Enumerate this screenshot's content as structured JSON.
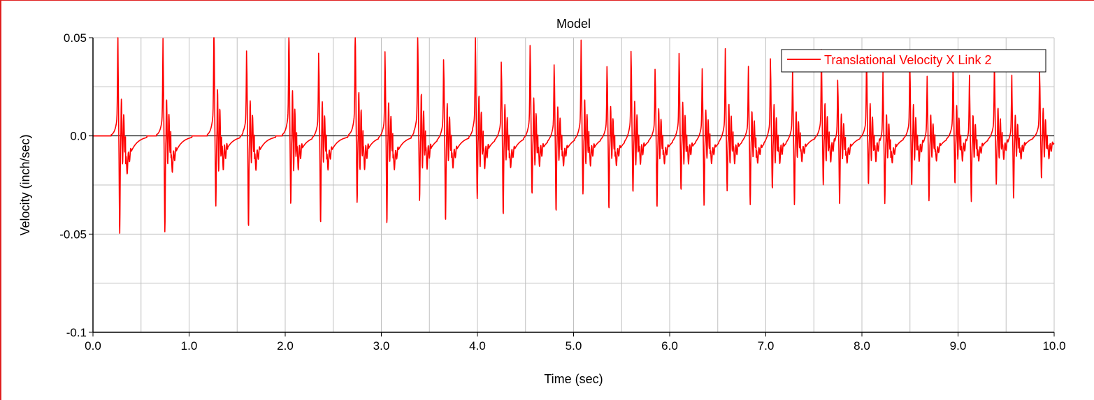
{
  "colors": {
    "series": "#ff0000",
    "grid": "#c0c0c0",
    "axis": "#000000",
    "frame": "#e02020"
  },
  "chart_data": {
    "type": "line",
    "title": "Model",
    "xlabel": "Time (sec)",
    "ylabel": "Velocity (inch/sec)",
    "xlim": [
      0,
      10
    ],
    "ylim": [
      -0.1,
      0.05
    ],
    "grid": true,
    "legend_position": "top-right",
    "x_ticks": [
      0,
      1,
      2,
      3,
      4,
      5,
      6,
      7,
      8,
      9,
      10
    ],
    "x_tick_labels": [
      "0.0",
      "1.0",
      "2.0",
      "3.0",
      "4.0",
      "5.0",
      "6.0",
      "7.0",
      "8.0",
      "9.0",
      "10.0"
    ],
    "y_ticks": [
      -0.1,
      -0.05,
      0,
      0.05
    ],
    "y_tick_labels": [
      "-0.1",
      "-0.05",
      "0.0",
      "0.05"
    ],
    "series": [
      {
        "name": "Translational Velocity X Link 2",
        "color": "#ff0000",
        "pulses": [
          {
            "t": 0.26,
            "pos": 0.039,
            "neg": -0.05,
            "tail": -0.018
          },
          {
            "t": 0.73,
            "pos": 0.039,
            "neg": -0.049,
            "tail": -0.017
          },
          {
            "t": 1.26,
            "pos": 0.049,
            "neg": -0.036,
            "tail": -0.014
          },
          {
            "t": 1.6,
            "pos": 0.037,
            "neg": -0.047,
            "tail": -0.016
          },
          {
            "t": 2.04,
            "pos": 0.048,
            "neg": -0.035,
            "tail": -0.014
          },
          {
            "t": 2.35,
            "pos": 0.036,
            "neg": -0.045,
            "tail": -0.016
          },
          {
            "t": 2.73,
            "pos": 0.047,
            "neg": -0.034,
            "tail": -0.014
          },
          {
            "t": 3.04,
            "pos": 0.035,
            "neg": -0.045,
            "tail": -0.016
          },
          {
            "t": 3.38,
            "pos": 0.045,
            "neg": -0.033,
            "tail": -0.014
          },
          {
            "t": 3.65,
            "pos": 0.034,
            "neg": -0.043,
            "tail": -0.015
          },
          {
            "t": 3.98,
            "pos": 0.043,
            "neg": -0.032,
            "tail": -0.014
          },
          {
            "t": 4.25,
            "pos": 0.033,
            "neg": -0.04,
            "tail": -0.015
          },
          {
            "t": 4.55,
            "pos": 0.04,
            "neg": -0.03,
            "tail": -0.013
          },
          {
            "t": 4.8,
            "pos": 0.032,
            "neg": -0.038,
            "tail": -0.014
          },
          {
            "t": 5.08,
            "pos": 0.039,
            "neg": -0.029,
            "tail": -0.013
          },
          {
            "t": 5.35,
            "pos": 0.031,
            "neg": -0.037,
            "tail": -0.014
          },
          {
            "t": 5.6,
            "pos": 0.038,
            "neg": -0.028,
            "tail": -0.012
          },
          {
            "t": 5.85,
            "pos": 0.03,
            "neg": -0.036,
            "tail": -0.013
          },
          {
            "t": 6.1,
            "pos": 0.037,
            "neg": -0.027,
            "tail": -0.012
          },
          {
            "t": 6.34,
            "pos": 0.029,
            "neg": -0.035,
            "tail": -0.013
          },
          {
            "t": 6.58,
            "pos": 0.036,
            "neg": -0.027,
            "tail": -0.012
          },
          {
            "t": 6.82,
            "pos": 0.028,
            "neg": -0.034,
            "tail": -0.013
          },
          {
            "t": 7.05,
            "pos": 0.035,
            "neg": -0.026,
            "tail": -0.012
          },
          {
            "t": 7.28,
            "pos": 0.028,
            "neg": -0.034,
            "tail": -0.012
          },
          {
            "t": 7.58,
            "pos": 0.035,
            "neg": -0.025,
            "tail": -0.011
          },
          {
            "t": 7.75,
            "pos": 0.027,
            "neg": -0.033,
            "tail": -0.012
          },
          {
            "t": 8.05,
            "pos": 0.034,
            "neg": -0.025,
            "tail": -0.011
          },
          {
            "t": 8.22,
            "pos": 0.027,
            "neg": -0.032,
            "tail": -0.012
          },
          {
            "t": 8.5,
            "pos": 0.033,
            "neg": -0.025,
            "tail": -0.011
          },
          {
            "t": 8.68,
            "pos": 0.026,
            "neg": -0.031,
            "tail": -0.011
          },
          {
            "t": 8.95,
            "pos": 0.032,
            "neg": -0.024,
            "tail": -0.011
          },
          {
            "t": 9.12,
            "pos": 0.026,
            "neg": -0.031,
            "tail": -0.011
          },
          {
            "t": 9.38,
            "pos": 0.031,
            "neg": -0.024,
            "tail": -0.01
          },
          {
            "t": 9.56,
            "pos": 0.025,
            "neg": -0.03,
            "tail": -0.01
          },
          {
            "t": 9.85,
            "pos": 0.029,
            "neg": -0.022,
            "tail": -0.01
          }
        ]
      }
    ]
  }
}
